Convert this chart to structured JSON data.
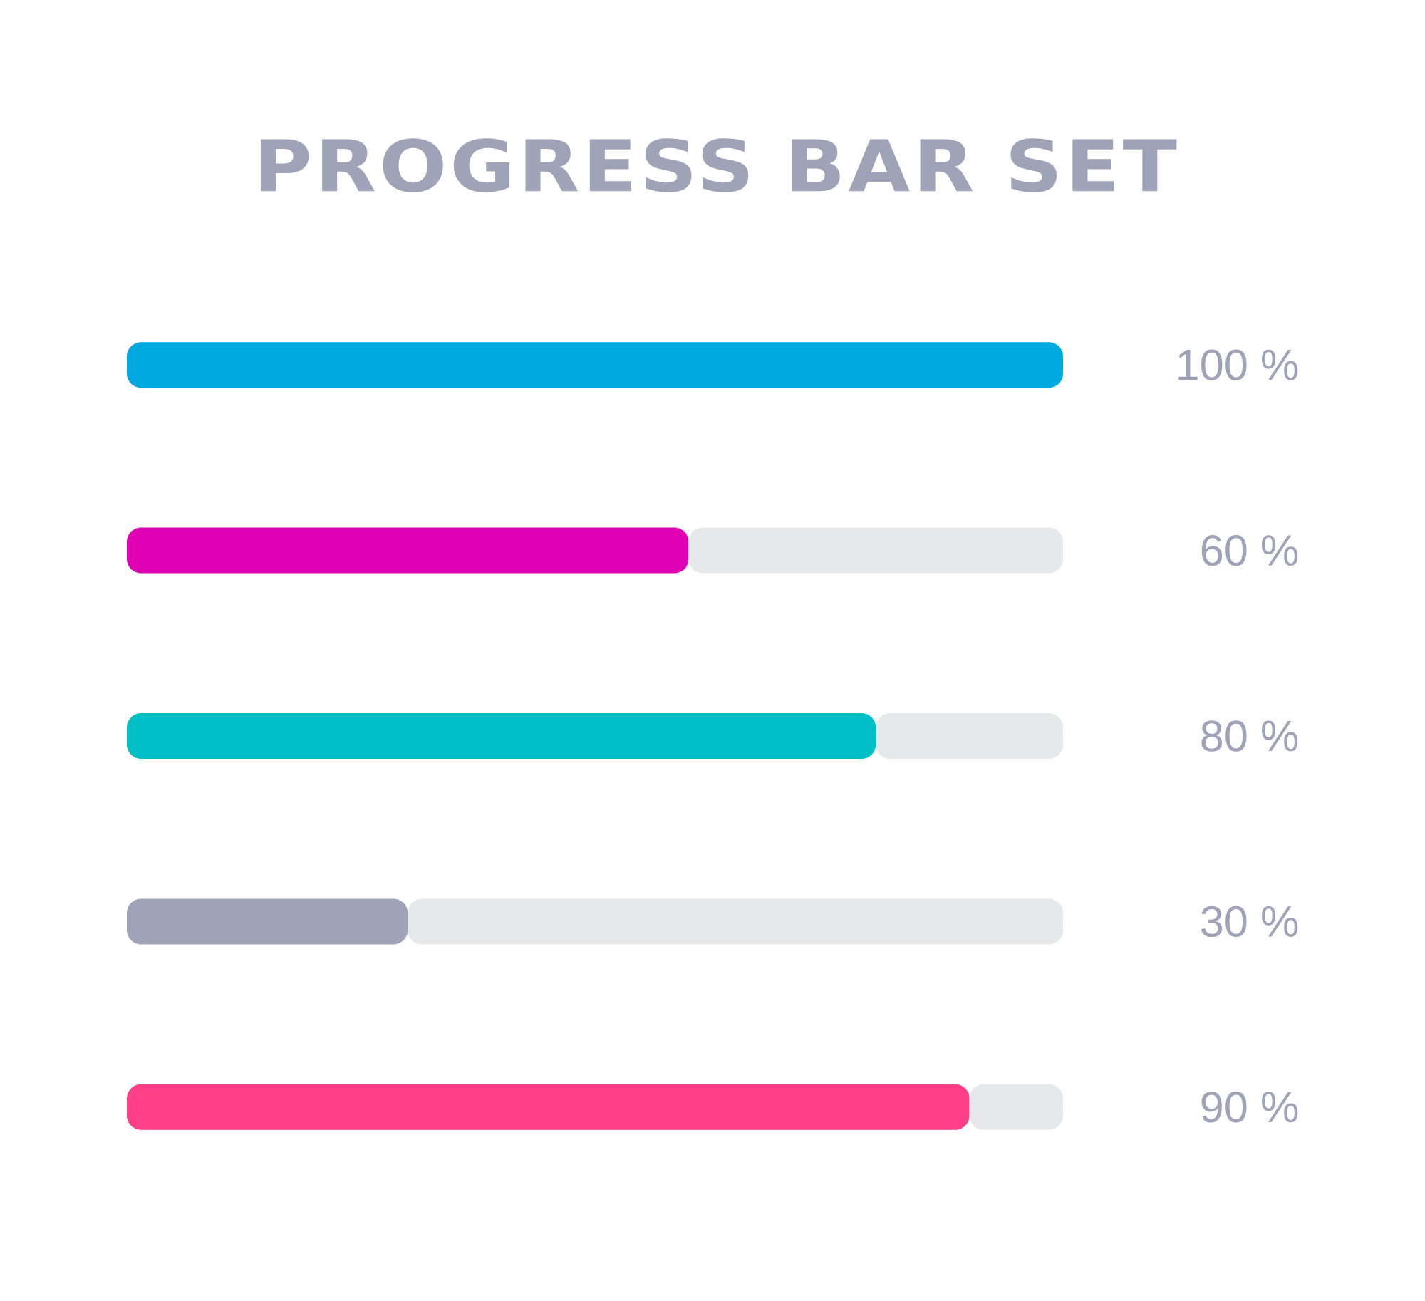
{
  "chart_data": {
    "type": "bar",
    "title": "PROGRESS BAR SET",
    "orientation": "horizontal",
    "stacked": true,
    "categories": [
      null,
      null,
      null,
      null,
      null
    ],
    "series": [
      {
        "colors": [
          "#00a9e0",
          "#e000b4",
          "#00bec6",
          "#9ea3b7",
          "#ff3f88"
        ],
        "values": [
          100,
          60,
          80,
          30,
          90
        ],
        "value_labels": [
          "100 %",
          "60 %",
          "80 %",
          "30 %",
          "90 %"
        ]
      },
      {
        "color": "#e7e8e9",
        "values": [
          null,
          40,
          20,
          70,
          10
        ]
      }
    ],
    "xlim": [
      0,
      100
    ],
    "tick_labels": false
  }
}
